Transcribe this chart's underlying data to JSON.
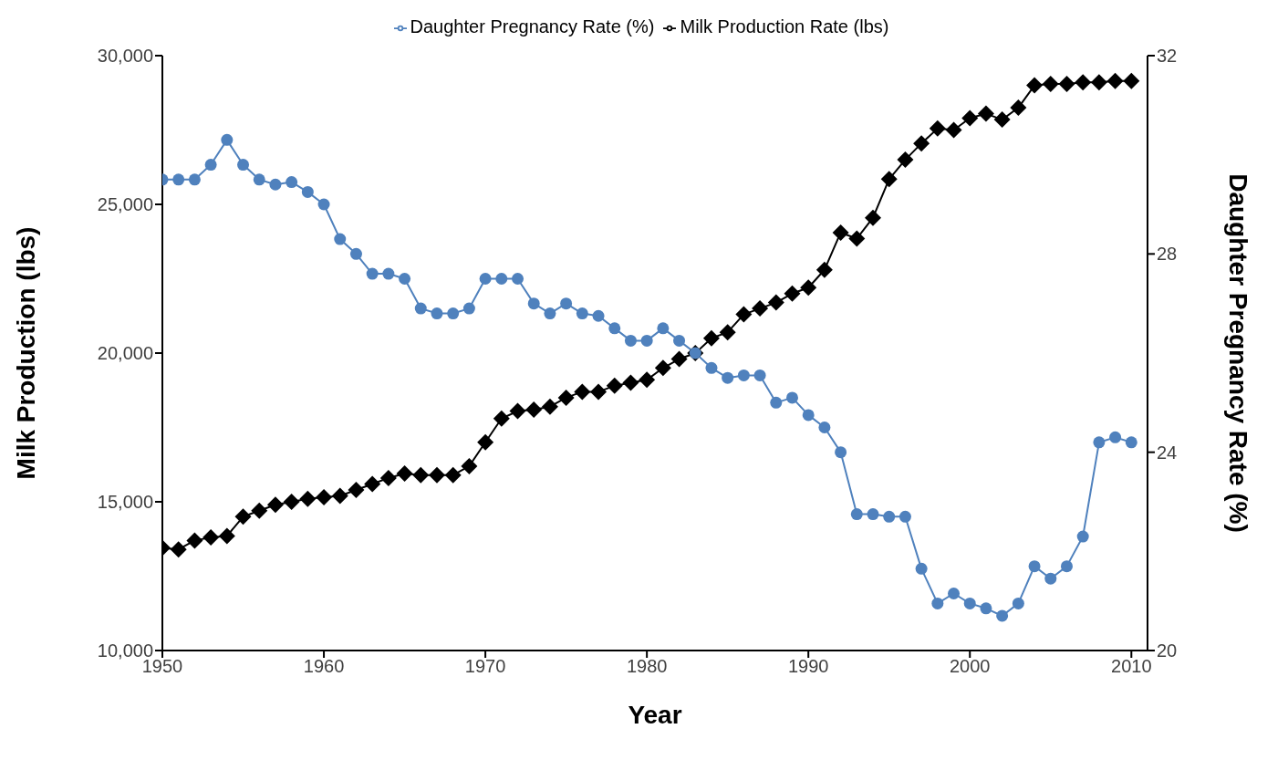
{
  "chart_data": {
    "type": "line",
    "xlabel": "Year",
    "ylabel": "Milk Production (lbs)",
    "y2label": "Daughter Pregnancy Rate (%)",
    "x": [
      1950,
      1951,
      1952,
      1953,
      1954,
      1955,
      1956,
      1957,
      1958,
      1959,
      1960,
      1961,
      1962,
      1963,
      1964,
      1965,
      1966,
      1967,
      1968,
      1969,
      1970,
      1971,
      1972,
      1973,
      1974,
      1975,
      1976,
      1977,
      1978,
      1979,
      1980,
      1981,
      1982,
      1983,
      1984,
      1985,
      1986,
      1987,
      1988,
      1989,
      1990,
      1991,
      1992,
      1993,
      1994,
      1995,
      1996,
      1997,
      1998,
      1999,
      2000,
      2001,
      2002,
      2003,
      2004,
      2005,
      2006,
      2007,
      2008,
      2009,
      2010
    ],
    "series": [
      {
        "name": "Milk Production Rate (lbs)",
        "color": "#000000",
        "marker": "diamond",
        "values": [
          13450,
          13400,
          13700,
          13800,
          13850,
          14500,
          14700,
          14900,
          15000,
          15100,
          15150,
          15200,
          15400,
          15600,
          15800,
          15950,
          15900,
          15900,
          15900,
          16200,
          17000,
          17800,
          18050,
          18100,
          18200,
          18500,
          18700,
          18700,
          18900,
          19000,
          19100,
          19500,
          19800,
          20000,
          20500,
          20700,
          21300,
          21500,
          21700,
          22000,
          22200,
          22800,
          24050,
          23850,
          24550,
          25850,
          26500,
          27050,
          27550,
          27500,
          27900,
          28050,
          27850,
          28250,
          29000,
          29050,
          29050,
          29100,
          29100,
          29150,
          29150
        ]
      },
      {
        "name": "Daughter Pregnancy Rate (%)",
        "color": "#4f81bd",
        "marker": "circle",
        "axis": "y2",
        "values": [
          29.5,
          29.5,
          29.5,
          29.8,
          30.3,
          29.8,
          29.5,
          29.4,
          29.45,
          29.25,
          29.0,
          28.3,
          28.0,
          27.6,
          27.6,
          27.5,
          26.9,
          26.8,
          26.8,
          26.9,
          27.5,
          27.5,
          27.5,
          27.0,
          26.8,
          27.0,
          26.8,
          26.75,
          26.5,
          26.25,
          26.25,
          26.5,
          26.25,
          26.0,
          25.7,
          25.5,
          25.55,
          25.55,
          25.0,
          25.1,
          24.75,
          24.5,
          24.0,
          22.75,
          22.75,
          22.7,
          22.7,
          21.65,
          20.95,
          21.15,
          20.95,
          20.85,
          20.7,
          20.95,
          21.7,
          21.45,
          21.7,
          22.3,
          24.2,
          24.3,
          24.2
        ]
      }
    ],
    "xlim": [
      1950,
      2011
    ],
    "xticks": [
      1950,
      1960,
      1970,
      1980,
      1990,
      2000,
      2010
    ],
    "ylim": [
      10000,
      30000
    ],
    "yticks": [
      {
        "value": 10000,
        "label": "10,000"
      },
      {
        "value": 15000,
        "label": "15,000"
      },
      {
        "value": 20000,
        "label": "20,000"
      },
      {
        "value": 25000,
        "label": "25,000"
      },
      {
        "value": 30000,
        "label": "30,000"
      }
    ],
    "y2lim": [
      20,
      32
    ],
    "y2ticks": [
      20,
      24,
      28,
      32
    ],
    "grid": false,
    "legend": "top",
    "line_style": "solid"
  }
}
